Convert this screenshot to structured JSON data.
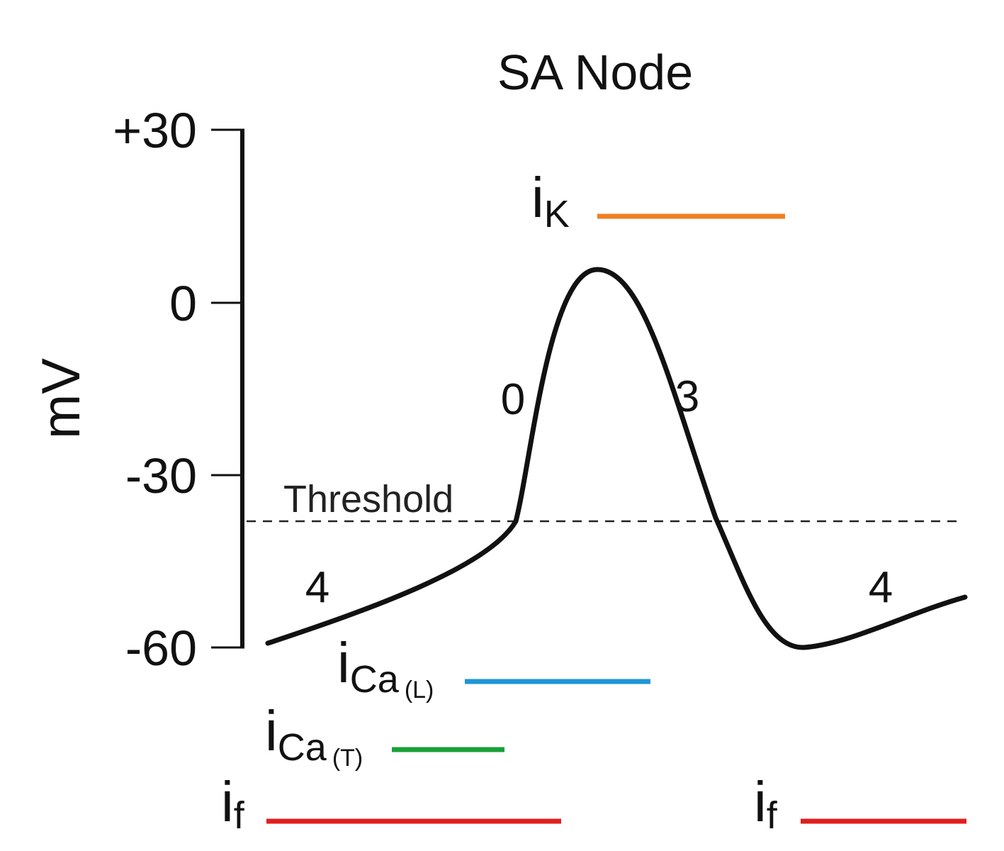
{
  "title": "SA Node",
  "y_axis": {
    "label": "mV",
    "ticks": [
      "+30",
      "0",
      "-30",
      "-60"
    ]
  },
  "threshold_label": "Threshold",
  "phase_labels": [
    "4",
    "0",
    "3",
    "4"
  ],
  "currents": [
    {
      "main": "i",
      "sub": "K",
      "qualifier": "",
      "color": "#f07f22"
    },
    {
      "main": "i",
      "sub": "Ca",
      "qualifier": "(L)",
      "color": "#1e96d8"
    },
    {
      "main": "i",
      "sub": "Ca",
      "qualifier": "(T)",
      "color": "#18a038"
    },
    {
      "main": "i",
      "sub": "f",
      "qualifier": "",
      "color": "#e01f1f"
    },
    {
      "main": "i",
      "sub": "f",
      "qualifier": "",
      "color": "#e01f1f"
    }
  ],
  "colors": {
    "phase_label": "#e8352b",
    "trace": "#111111"
  }
}
